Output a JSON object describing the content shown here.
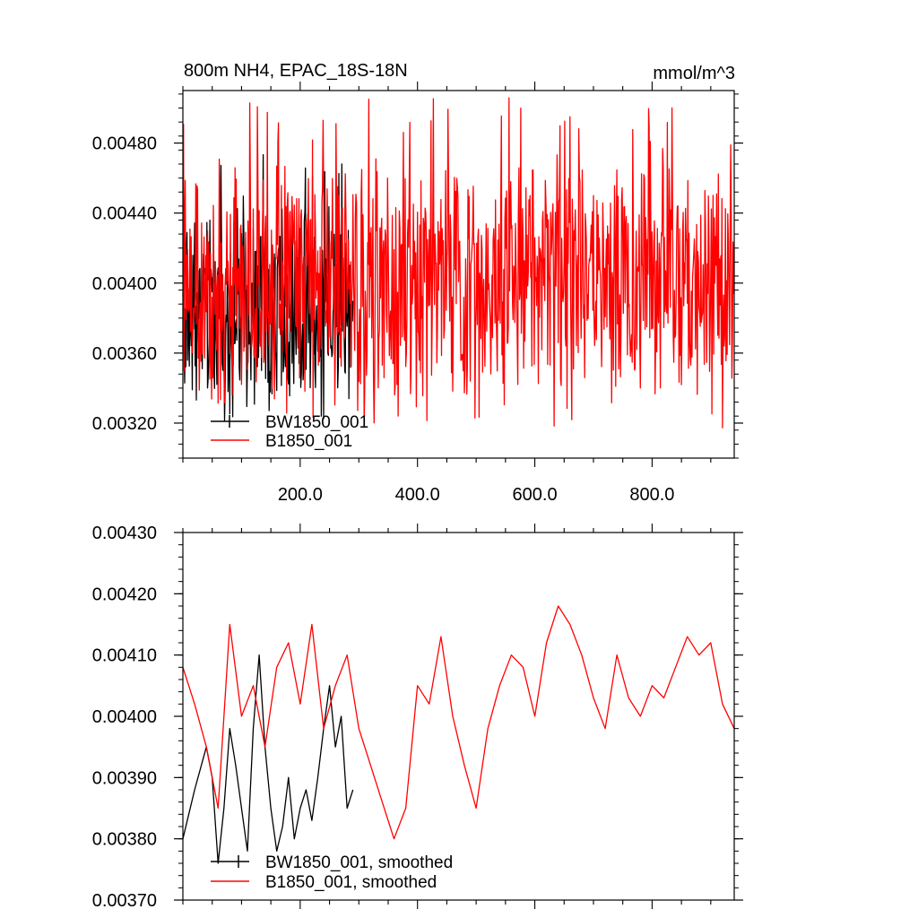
{
  "chart_data": [
    {
      "type": "line",
      "title": "800m NH4, EPAC_18S-18N",
      "units": "mmol/m^3",
      "xlim": [
        0,
        940
      ],
      "ylim": [
        0.003,
        0.0051
      ],
      "x_ticks": [
        200,
        400,
        600,
        800
      ],
      "x_tick_labels": [
        "200.0",
        "400.0",
        "600.0",
        "800.0"
      ],
      "y_ticks": [
        0.0032,
        0.0036,
        0.004,
        0.0044,
        0.0048
      ],
      "y_tick_labels": [
        "0.00320",
        "0.00360",
        "0.00400",
        "0.00440",
        "0.00480"
      ],
      "legend_position": "bottom-left",
      "series": [
        {
          "name": "BW1850_001",
          "color": "#000000",
          "x_range": [
            0,
            290
          ],
          "mean": 0.00385,
          "min": 0.0032,
          "max": 0.00482
        },
        {
          "name": "B1850_001",
          "color": "#ff0000",
          "x_range": [
            0,
            940
          ],
          "mean": 0.00403,
          "min": 0.00316,
          "max": 0.00506
        }
      ]
    },
    {
      "type": "line",
      "xlim": [
        0,
        940
      ],
      "ylim": [
        0.0037,
        0.0043
      ],
      "y_ticks": [
        0.0037,
        0.0038,
        0.0039,
        0.004,
        0.0041,
        0.0042,
        0.0043
      ],
      "y_tick_labels": [
        "0.00370",
        "0.00380",
        "0.00390",
        "0.00400",
        "0.00410",
        "0.00420",
        "0.00430"
      ],
      "legend_position": "bottom-left",
      "series": [
        {
          "name": "BW1850_001, smoothed",
          "color": "#000000",
          "x": [
            0,
            20,
            40,
            50,
            60,
            70,
            80,
            90,
            100,
            110,
            120,
            130,
            140,
            150,
            160,
            170,
            180,
            190,
            200,
            210,
            220,
            230,
            240,
            250,
            260,
            270,
            280,
            290
          ],
          "y": [
            0.0038,
            0.00388,
            0.00395,
            0.0039,
            0.00376,
            0.00385,
            0.00398,
            0.00392,
            0.00385,
            0.00378,
            0.00398,
            0.0041,
            0.00395,
            0.00385,
            0.00378,
            0.00382,
            0.0039,
            0.0038,
            0.00385,
            0.00388,
            0.00383,
            0.0039,
            0.00398,
            0.00405,
            0.00395,
            0.004,
            0.00385,
            0.00388
          ]
        },
        {
          "name": "B1850_001, smoothed",
          "color": "#ff0000",
          "x": [
            0,
            20,
            40,
            60,
            80,
            100,
            120,
            140,
            160,
            180,
            200,
            220,
            240,
            260,
            280,
            300,
            320,
            340,
            360,
            380,
            400,
            420,
            440,
            460,
            480,
            500,
            520,
            540,
            560,
            580,
            600,
            620,
            640,
            660,
            680,
            700,
            720,
            740,
            760,
            780,
            800,
            820,
            840,
            860,
            880,
            900,
            920,
            940
          ],
          "y": [
            0.00408,
            0.00402,
            0.00395,
            0.00385,
            0.00415,
            0.004,
            0.00405,
            0.00395,
            0.00408,
            0.00412,
            0.00402,
            0.00415,
            0.00398,
            0.00405,
            0.0041,
            0.00398,
            0.00392,
            0.00386,
            0.0038,
            0.00385,
            0.00405,
            0.00402,
            0.00413,
            0.004,
            0.00392,
            0.00385,
            0.00398,
            0.00405,
            0.0041,
            0.00408,
            0.004,
            0.00412,
            0.00418,
            0.00415,
            0.0041,
            0.00403,
            0.00398,
            0.0041,
            0.00403,
            0.004,
            0.00405,
            0.00403,
            0.00408,
            0.00413,
            0.0041,
            0.00412,
            0.00402,
            0.00398
          ]
        }
      ]
    }
  ]
}
